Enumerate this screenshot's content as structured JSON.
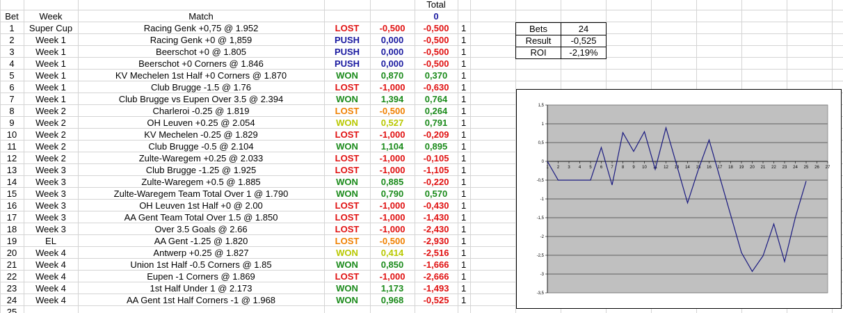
{
  "header": {
    "bet": "Bet",
    "week": "Week",
    "match": "Match",
    "total_label": "Total",
    "total_value": "0",
    "partial_row_number": "25"
  },
  "rows": [
    {
      "bet": "1",
      "week": "Super Cup",
      "match": "Racing Genk +0,75 @ 1.952",
      "result": "LOST",
      "amount": "-0,500",
      "total": "-0,500",
      "flag": "1"
    },
    {
      "bet": "2",
      "week": "Week 1",
      "match": "Racing Genk +0 @ 1,859",
      "result": "PUSH",
      "amount": "0,000",
      "total": "-0,500",
      "flag": "1"
    },
    {
      "bet": "3",
      "week": "Week 1",
      "match": "Beerschot +0 @ 1.805",
      "result": "PUSH",
      "amount": "0,000",
      "total": "-0,500",
      "flag": "1"
    },
    {
      "bet": "4",
      "week": "Week 1",
      "match": "Beerschot +0 Corners @ 1.846",
      "result": "PUSH",
      "amount": "0,000",
      "total": "-0,500",
      "flag": "1"
    },
    {
      "bet": "5",
      "week": "Week 1",
      "match": "KV Mechelen 1st Half +0 Corners @ 1.870",
      "result": "WON",
      "amount": "0,870",
      "total": "0,370",
      "flag": "1"
    },
    {
      "bet": "6",
      "week": "Week 1",
      "match": "Club Brugge -1.5 @ 1.76",
      "result": "LOST",
      "amount": "-1,000",
      "total": "-0,630",
      "flag": "1"
    },
    {
      "bet": "7",
      "week": "Week 1",
      "match": "Club Brugge vs Eupen Over 3.5 @ 2.394",
      "result": "WON",
      "amount": "1,394",
      "total": "0,764",
      "flag": "1"
    },
    {
      "bet": "8",
      "week": "Week 2",
      "match": "Charleroi -0.25 @ 1.819",
      "result": "LOST",
      "amount": "-0,500",
      "total": "0,264",
      "flag": "1",
      "half": true
    },
    {
      "bet": "9",
      "week": "Week 2",
      "match": "OH Leuven +0.25 @ 2.054",
      "result": "WON",
      "amount": "0,527",
      "total": "0,791",
      "flag": "1",
      "half": true
    },
    {
      "bet": "10",
      "week": "Week 2",
      "match": "KV Mechelen -0.25 @ 1.829",
      "result": "LOST",
      "amount": "-1,000",
      "total": "-0,209",
      "flag": "1"
    },
    {
      "bet": "11",
      "week": "Week 2",
      "match": "Club Brugge -0.5 @ 2.104",
      "result": "WON",
      "amount": "1,104",
      "total": "0,895",
      "flag": "1"
    },
    {
      "bet": "12",
      "week": "Week 2",
      "match": "Zulte-Waregem +0.25 @ 2.033",
      "result": "LOST",
      "amount": "-1,000",
      "total": "-0,105",
      "flag": "1"
    },
    {
      "bet": "13",
      "week": "Week 3",
      "match": "Club Brugge -1.25 @ 1.925",
      "result": "LOST",
      "amount": "-1,000",
      "total": "-1,105",
      "flag": "1"
    },
    {
      "bet": "14",
      "week": "Week 3",
      "match": "Zulte-Waregem +0.5 @ 1.885",
      "result": "WON",
      "amount": "0,885",
      "total": "-0,220",
      "flag": "1"
    },
    {
      "bet": "15",
      "week": "Week 3",
      "match": "Zulte-Waregem Team Total Over 1 @ 1.790",
      "result": "WON",
      "amount": "0,790",
      "total": "0,570",
      "flag": "1"
    },
    {
      "bet": "16",
      "week": "Week 3",
      "match": "OH Leuven 1st Half +0 @ 2.00",
      "result": "LOST",
      "amount": "-1,000",
      "total": "-0,430",
      "flag": "1"
    },
    {
      "bet": "17",
      "week": "Week 3",
      "match": "AA Gent Team Total Over 1.5 @ 1.850",
      "result": "LOST",
      "amount": "-1,000",
      "total": "-1,430",
      "flag": "1"
    },
    {
      "bet": "18",
      "week": "Week 3",
      "match": "Over 3.5 Goals @ 2.66",
      "result": "LOST",
      "amount": "-1,000",
      "total": "-2,430",
      "flag": "1"
    },
    {
      "bet": "19",
      "week": "EL",
      "match": "AA Gent -1.25 @ 1.820",
      "result": "LOST",
      "amount": "-0,500",
      "total": "-2,930",
      "flag": "1",
      "half": true
    },
    {
      "bet": "20",
      "week": "Week 4",
      "match": "Antwerp +0.25 @ 1.827",
      "result": "WON",
      "amount": "0,414",
      "total": "-2,516",
      "flag": "1",
      "half": true
    },
    {
      "bet": "21",
      "week": "Week 4",
      "match": "Union 1st Half -0.5 Corners @ 1.85",
      "result": "WON",
      "amount": "0,850",
      "total": "-1,666",
      "flag": "1"
    },
    {
      "bet": "22",
      "week": "Week 4",
      "match": "Eupen -1 Corners @ 1.869",
      "result": "LOST",
      "amount": "-1,000",
      "total": "-2,666",
      "flag": "1"
    },
    {
      "bet": "23",
      "week": "Week 4",
      "match": "1st Half Under 1 @ 2.173",
      "result": "WON",
      "amount": "1,173",
      "total": "-1,493",
      "flag": "1"
    },
    {
      "bet": "24",
      "week": "Week 4",
      "match": "AA Gent 1st Half Corners -1 @ 1.968",
      "result": "WON",
      "amount": "0,968",
      "total": "-0,525",
      "flag": "1"
    }
  ],
  "stats": [
    {
      "label": "Bets",
      "value": "24"
    },
    {
      "label": "Result",
      "value": "-0,525"
    },
    {
      "label": "ROI",
      "value": "-2,19%"
    }
  ],
  "colors": {
    "won": "#1a8a1a",
    "lost": "#e01010",
    "push": "#1a1aa0",
    "half_won": "#b8c800",
    "half_lost": "#f08000",
    "total_header": "#1a1aa0",
    "chart_plot_bg": "#c0c0c0",
    "chart_line": "#1a1a80"
  },
  "chart_data": {
    "type": "line",
    "x": [
      1,
      2,
      3,
      4,
      5,
      6,
      7,
      8,
      9,
      10,
      11,
      12,
      13,
      14,
      15,
      16,
      17,
      18,
      19,
      20,
      21,
      22,
      23,
      24,
      25
    ],
    "series": [
      {
        "values": [
          0,
          -0.5,
          -0.5,
          -0.5,
          -0.5,
          0.37,
          -0.63,
          0.764,
          0.264,
          0.791,
          -0.209,
          0.895,
          -0.105,
          -1.105,
          -0.22,
          0.57,
          -0.43,
          -1.43,
          -2.43,
          -2.93,
          -2.516,
          -1.666,
          -2.666,
          -1.493,
          -0.525
        ]
      }
    ],
    "x_ticks": [
      "1",
      "2",
      "3",
      "4",
      "5",
      "6",
      "7",
      "8",
      "9",
      "10",
      "11",
      "12",
      "13",
      "14",
      "15",
      "16",
      "17",
      "18",
      "19",
      "20",
      "21",
      "22",
      "23",
      "24",
      "25",
      "26",
      "27"
    ],
    "y_ticks": [
      "1,5",
      "1",
      "0,5",
      "0",
      "-0,5",
      "-1",
      "-1,5",
      "-2",
      "-2,5",
      "-3",
      "-3,5"
    ],
    "ylim": [
      -3.5,
      1.5
    ],
    "xlim": [
      1,
      27
    ],
    "grid": true,
    "legend": "none"
  }
}
